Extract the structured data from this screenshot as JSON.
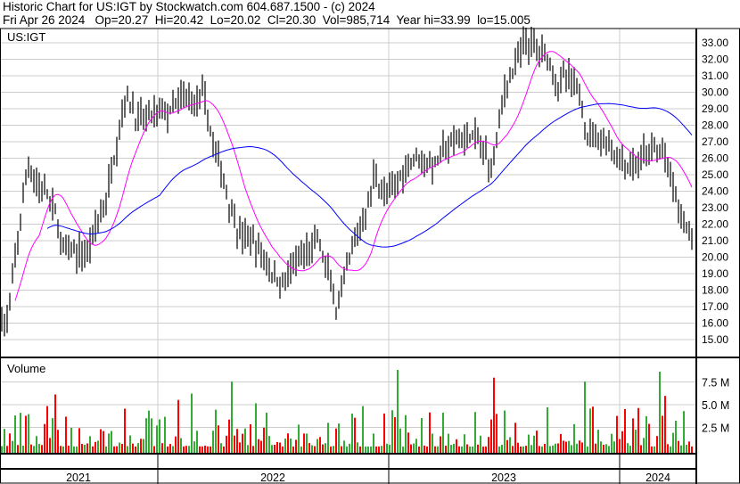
{
  "header": {
    "title": "Historic Chart for US:IGT by Stockwatch.com 604.687.1500 - (c) 2024",
    "quote": "Fri Apr 26 2024   Op=20.27  Hi=20.42  Lo=20.02  Cl=20.30  Vol=985,714  Year hi=33.99  lo=15.005"
  },
  "chart_data": [
    {
      "type": "line",
      "title": "US:IGT",
      "ylim": [
        14,
        34
      ],
      "y_ticks": [
        "15.00",
        "16.00",
        "17.00",
        "18.00",
        "19.00",
        "20.00",
        "21.00",
        "22.00",
        "23.00",
        "24.00",
        "25.00",
        "26.00",
        "27.00",
        "28.00",
        "29.00",
        "30.00",
        "31.00",
        "32.00",
        "33.00"
      ],
      "x_ticks": [
        "2021",
        "2022",
        "2023",
        "2024"
      ],
      "grid": true,
      "series_colors": {
        "price": "#000000",
        "ma_short": "#ff00ff",
        "ma_long": "#0000ff"
      },
      "x": [
        "2021-04",
        "2021-05",
        "2021-06",
        "2021-07",
        "2021-08",
        "2021-09",
        "2021-10",
        "2021-11",
        "2021-12",
        "2022-01",
        "2022-02",
        "2022-03",
        "2022-04",
        "2022-05",
        "2022-06",
        "2022-07",
        "2022-08",
        "2022-09",
        "2022-10",
        "2022-11",
        "2022-12",
        "2023-01",
        "2023-02",
        "2023-03",
        "2023-04",
        "2023-05",
        "2023-06",
        "2023-07",
        "2023-08",
        "2023-09",
        "2023-10",
        "2023-11",
        "2023-12",
        "2024-01",
        "2024-02",
        "2024-03",
        "2024-04"
      ],
      "close": [
        16.5,
        25.5,
        24,
        19.5,
        20,
        23,
        31,
        28.5,
        28,
        28.5,
        29,
        24.5,
        22,
        20.5,
        19,
        19.5,
        20.5,
        16.5,
        20,
        25,
        23.5,
        26.5,
        26,
        26.5,
        27.5,
        25,
        31,
        32.5,
        31.5,
        30.5,
        28,
        27.5,
        26.5,
        26.5,
        26,
        21.5,
        20.3
      ]
    },
    {
      "type": "bar",
      "title": "Volume",
      "y_ticks": [
        "2.5 M",
        "5.0 M",
        "7.5 M"
      ],
      "ylim": [
        0,
        10
      ],
      "colors": {
        "up": "#33aa33",
        "down": "#ff0000"
      }
    }
  ]
}
